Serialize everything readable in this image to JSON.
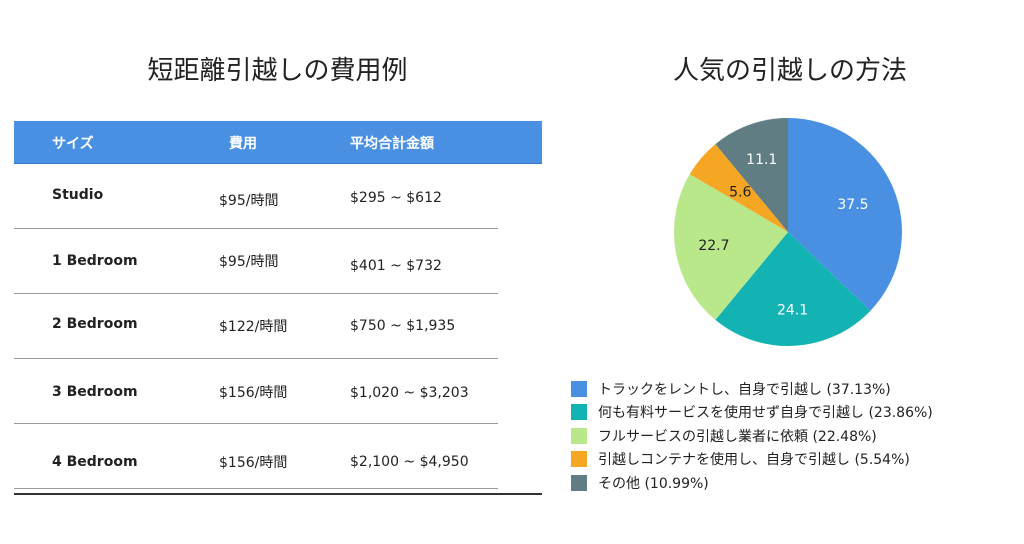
{
  "left": {
    "title": "短距離引越しの費用例",
    "table": {
      "headers": [
        "サイズ",
        "費用",
        "平均合計金額"
      ],
      "rows": [
        [
          "Studio",
          "$95/時間",
          "$295 ~ $612"
        ],
        [
          "1 Bedroom",
          "$95/時間",
          "$401 ~ $732"
        ],
        [
          "2 Bedroom",
          "$122/時間",
          "$750 ~ $1,935"
        ],
        [
          "3 Bedroom",
          "$156/時間",
          "$1,020 ~ $3,203"
        ],
        [
          "4 Bedroom",
          "$156/時間",
          "$2,100 ~ $4,950"
        ]
      ],
      "header_color": "#4a90e2"
    }
  },
  "chart_data": {
    "type": "pie",
    "title": "人気の引越しの方法",
    "slices": [
      {
        "label": "トラックをレントし、自身で引越し (37.13%)",
        "value": 37.5,
        "display": "37.5",
        "color": "#4a90e2"
      },
      {
        "label": "何も有料サービスを使用せず自身で引越し (23.86%)",
        "value": 24.1,
        "display": "24.1",
        "color": "#14b3b3"
      },
      {
        "label": "フルサービスの引越し業者に依頼 (22.48%)",
        "value": 22.7,
        "display": "22.7",
        "color": "#b8e88a"
      },
      {
        "label": "引越しコンテナを使用し、自身で引越し (5.54%)",
        "value": 5.6,
        "display": "5.6",
        "color": "#f5a623"
      },
      {
        "label": "その他 (10.99%)",
        "value": 11.1,
        "display": "11.1",
        "color": "#5f7d82"
      }
    ],
    "legend_position": "bottom"
  }
}
